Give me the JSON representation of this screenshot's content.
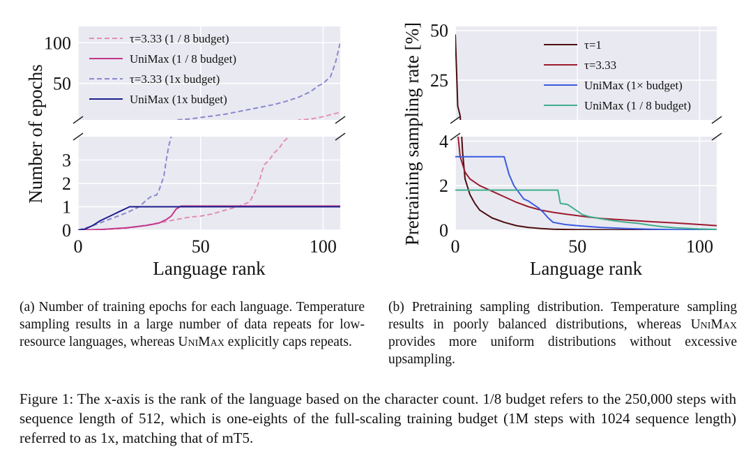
{
  "chart_data": [
    {
      "id": "a",
      "type": "line",
      "xlabel": "Language rank",
      "ylabel": "Number of epochs",
      "xlim": [
        0,
        107
      ],
      "x_ticks": [
        "0",
        "50",
        "100"
      ],
      "upper_ylim": [
        5,
        120
      ],
      "upper_ticks": [
        "50",
        "100"
      ],
      "lower_ylim": [
        0,
        4
      ],
      "lower_ticks": [
        "0",
        "1",
        "2",
        "3"
      ],
      "grid": true,
      "legend": "top-left",
      "series": [
        {
          "name": "τ=3.33 (1 / 8 budget)",
          "color": "#e08fb5",
          "dash": true,
          "points": [
            [
              0,
              0.0
            ],
            [
              10,
              0.02
            ],
            [
              20,
              0.08
            ],
            [
              30,
              0.25
            ],
            [
              40,
              0.45
            ],
            [
              45,
              0.55
            ],
            [
              50,
              0.6
            ],
            [
              55,
              0.7
            ],
            [
              60,
              0.85
            ],
            [
              65,
              1.0
            ],
            [
              70,
              1.2
            ],
            [
              72,
              1.6
            ],
            [
              74,
              2.1
            ],
            [
              75,
              2.5
            ],
            [
              76,
              2.8
            ],
            [
              78,
              3.0
            ],
            [
              80,
              3.3
            ],
            [
              82,
              3.5
            ],
            [
              84,
              3.8
            ],
            [
              86,
              4.0
            ],
            [
              90,
              5.0
            ],
            [
              95,
              6
            ],
            [
              100,
              9
            ],
            [
              105,
              13
            ],
            [
              107,
              14
            ]
          ]
        },
        {
          "name": "UniMax (1 / 8 budget)",
          "color": "#c2358a",
          "dash": false,
          "points": [
            [
              0,
              0
            ],
            [
              10,
              0.03
            ],
            [
              20,
              0.1
            ],
            [
              28,
              0.2
            ],
            [
              33,
              0.3
            ],
            [
              36,
              0.45
            ],
            [
              38,
              0.6
            ],
            [
              40,
              0.9
            ],
            [
              42,
              1.03
            ],
            [
              107,
              1.03
            ]
          ]
        },
        {
          "name": "τ=3.33 (1x budget)",
          "color": "#8a87cf",
          "dash": true,
          "points": [
            [
              0,
              0
            ],
            [
              5,
              0.15
            ],
            [
              10,
              0.35
            ],
            [
              15,
              0.55
            ],
            [
              20,
              0.75
            ],
            [
              25,
              1.0
            ],
            [
              28,
              1.3
            ],
            [
              30,
              1.45
            ],
            [
              32,
              1.5
            ],
            [
              33,
              1.7
            ],
            [
              35,
              2.3
            ],
            [
              36,
              3.0
            ],
            [
              37,
              3.6
            ],
            [
              38,
              4.0
            ],
            [
              40,
              5
            ],
            [
              45,
              6
            ],
            [
              50,
              8
            ],
            [
              55,
              10
            ],
            [
              60,
              12
            ],
            [
              65,
              15
            ],
            [
              70,
              18
            ],
            [
              75,
              21
            ],
            [
              80,
              24
            ],
            [
              85,
              28
            ],
            [
              90,
              33
            ],
            [
              95,
              40
            ],
            [
              98,
              47
            ],
            [
              100,
              50
            ],
            [
              103,
              58
            ],
            [
              105,
              75
            ],
            [
              107,
              100
            ]
          ]
        },
        {
          "name": "UniMax (1x budget)",
          "color": "#1c1f8c",
          "dash": false,
          "points": [
            [
              0,
              0
            ],
            [
              3,
              0.05
            ],
            [
              6,
              0.2
            ],
            [
              9,
              0.4
            ],
            [
              12,
              0.55
            ],
            [
              15,
              0.7
            ],
            [
              17,
              0.8
            ],
            [
              19,
              0.9
            ],
            [
              21,
              1.0
            ],
            [
              107,
              1.0
            ]
          ]
        }
      ]
    },
    {
      "id": "b",
      "type": "line",
      "xlabel": "Language rank",
      "ylabel": "Pretraining sampling rate [%]",
      "xlim": [
        0,
        107
      ],
      "x_ticks": [
        "0",
        "50",
        "100"
      ],
      "upper_ylim": [
        5,
        52
      ],
      "upper_ticks": [
        "25",
        "50"
      ],
      "lower_ylim": [
        0,
        4.2
      ],
      "lower_ticks": [
        "0",
        "2",
        "4"
      ],
      "grid": true,
      "legend": "top-right",
      "series": [
        {
          "name": "τ=1",
          "color": "#4a0d0d",
          "dash": false,
          "points": [
            [
              0,
              48
            ],
            [
              0.5,
              30
            ],
            [
              1,
              12
            ],
            [
              2,
              7
            ],
            [
              3,
              3.5
            ],
            [
              4,
              2.3
            ],
            [
              6,
              1.6
            ],
            [
              8,
              1.2
            ],
            [
              10,
              0.9
            ],
            [
              15,
              0.55
            ],
            [
              20,
              0.35
            ],
            [
              25,
              0.2
            ],
            [
              30,
              0.12
            ],
            [
              35,
              0.07
            ],
            [
              40,
              0.04
            ],
            [
              50,
              0.02
            ],
            [
              107,
              0.0
            ]
          ]
        },
        {
          "name": "τ=3.33",
          "color": "#9b1a2c",
          "dash": false,
          "points": [
            [
              0,
              4.6
            ],
            [
              2,
              3.3
            ],
            [
              4,
              2.6
            ],
            [
              6,
              2.3
            ],
            [
              10,
              2.0
            ],
            [
              15,
              1.75
            ],
            [
              20,
              1.5
            ],
            [
              25,
              1.25
            ],
            [
              30,
              1.05
            ],
            [
              35,
              0.9
            ],
            [
              40,
              0.8
            ],
            [
              45,
              0.72
            ],
            [
              50,
              0.65
            ],
            [
              55,
              0.58
            ],
            [
              60,
              0.52
            ],
            [
              70,
              0.45
            ],
            [
              80,
              0.38
            ],
            [
              90,
              0.32
            ],
            [
              100,
              0.25
            ],
            [
              107,
              0.2
            ]
          ]
        },
        {
          "name": "UniMax (1× budget)",
          "color": "#3a5be0",
          "dash": false,
          "points": [
            [
              0,
              3.3
            ],
            [
              20,
              3.3
            ],
            [
              22,
              2.5
            ],
            [
              24,
              2.0
            ],
            [
              26,
              1.7
            ],
            [
              28,
              1.4
            ],
            [
              30,
              1.3
            ],
            [
              32,
              1.15
            ],
            [
              34,
              1.0
            ],
            [
              36,
              0.8
            ],
            [
              38,
              0.55
            ],
            [
              40,
              0.35
            ],
            [
              45,
              0.25
            ],
            [
              50,
              0.2
            ],
            [
              60,
              0.12
            ],
            [
              70,
              0.07
            ],
            [
              80,
              0.04
            ],
            [
              90,
              0.02
            ],
            [
              107,
              0.01
            ]
          ]
        },
        {
          "name": "UniMax (1 / 8 budget)",
          "color": "#3fae8c",
          "dash": false,
          "points": [
            [
              0,
              1.8
            ],
            [
              42,
              1.8
            ],
            [
              43,
              1.2
            ],
            [
              46,
              1.15
            ],
            [
              48,
              1.0
            ],
            [
              50,
              0.85
            ],
            [
              52,
              0.7
            ],
            [
              55,
              0.6
            ],
            [
              60,
              0.5
            ],
            [
              65,
              0.42
            ],
            [
              70,
              0.35
            ],
            [
              75,
              0.3
            ],
            [
              80,
              0.22
            ],
            [
              85,
              0.15
            ],
            [
              90,
              0.1
            ],
            [
              100,
              0.05
            ],
            [
              107,
              0.03
            ]
          ]
        }
      ]
    }
  ],
  "captions": {
    "a_prefix": "(a) Number of training epochs for each language. Temperature sampling results in a large number of data repeats for low-resource languages, whereas ",
    "a_unimax": "UniMax",
    "a_suffix": " explicitly caps repeats.",
    "b_prefix": "(b) Pretraining sampling distribution. Temperature sampling results in poorly balanced distributions, whereas ",
    "b_unimax": "UniMax",
    "b_suffix": " provides more uniform distributions without excessive upsampling.",
    "main": "Figure 1: The x-axis is the rank of the language based on the character count. 1/8 budget refers to the 250,000 steps with sequence length of 512, which is one-eights of the full-scaling training budget (1M steps with 1024 sequence length) referred to as 1x, matching that of mT5."
  }
}
